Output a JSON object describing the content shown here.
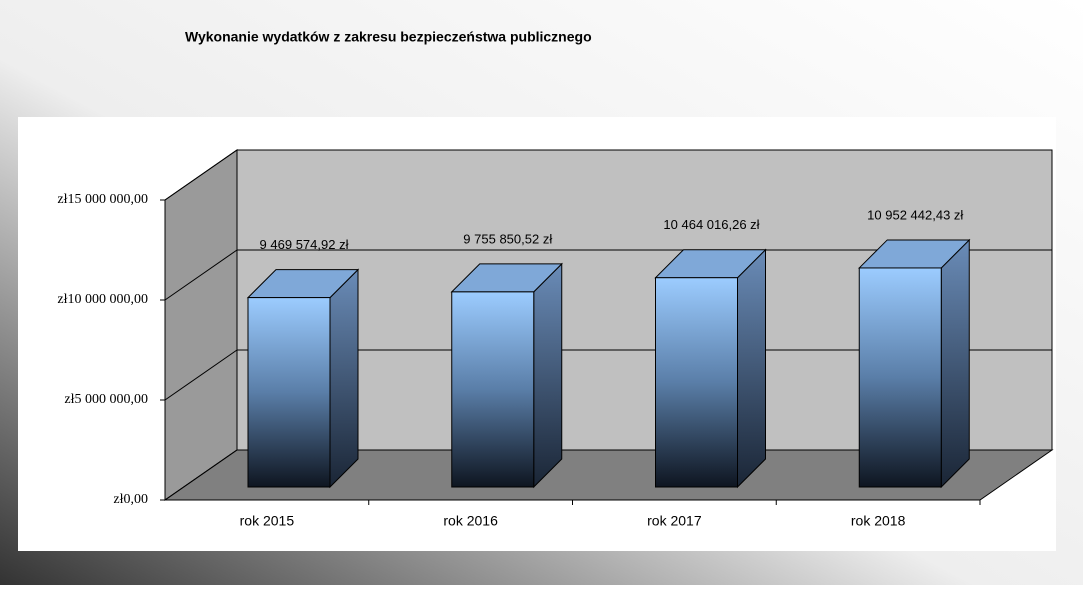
{
  "chart_data": {
    "type": "bar3d",
    "title": "Wykonanie wydatków z zakresu bezpieczeństwa publicznego",
    "categories": [
      "rok 2015",
      "rok 2016",
      "rok 2017",
      "rok 2018"
    ],
    "values": [
      9469574.92,
      9755850.52,
      10464016.26,
      10952442.43
    ],
    "value_labels": [
      "9 469 574,92 zł",
      "9 755 850,52 zł",
      "10 464 016,26 zł",
      "10 952 442,43 zł"
    ],
    "color": "#9cc8f5",
    "ylim": [
      0,
      15000000
    ],
    "yticks": [
      {
        "value": 0,
        "label": "zł0,00"
      },
      {
        "value": 5000000,
        "label": "zł5 000 000,00"
      },
      {
        "value": 10000000,
        "label": "zł10 000 000,00"
      },
      {
        "value": 15000000,
        "label": "zł15 000 000,00"
      }
    ],
    "grid": true
  }
}
